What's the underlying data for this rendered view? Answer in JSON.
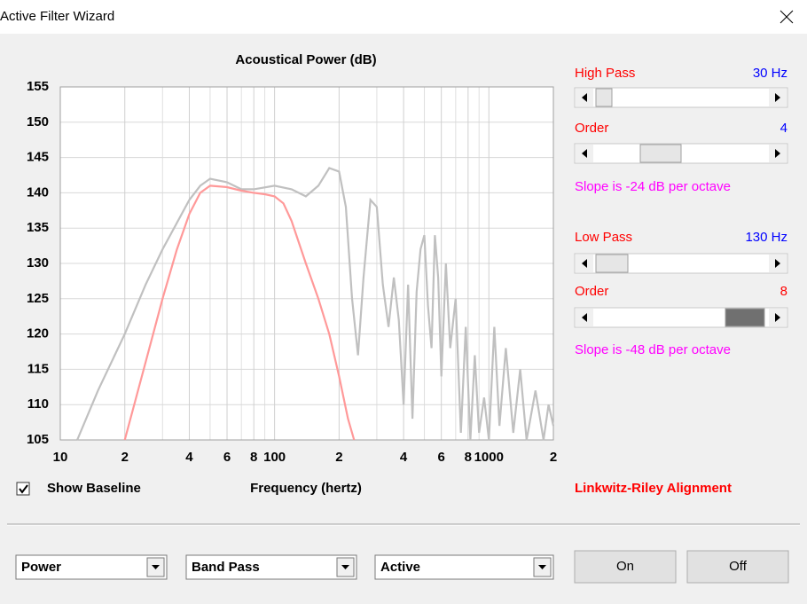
{
  "window": {
    "title": "Active Filter Wizard"
  },
  "chart_data": {
    "type": "line",
    "title": "Acoustical Power (dB)",
    "x_label": "Frequency (hertz)",
    "log_x": true,
    "grid": true,
    "xlim": [
      10,
      2000
    ],
    "ylim": [
      105,
      155
    ],
    "yticks": [
      105,
      110,
      115,
      120,
      125,
      130,
      135,
      140,
      145,
      150,
      155
    ],
    "xticks": [
      {
        "value": 10,
        "label": "10"
      },
      {
        "value": 20,
        "label": "2"
      },
      {
        "value": 40,
        "label": "4"
      },
      {
        "value": 60,
        "label": "6"
      },
      {
        "value": 80,
        "label": "8"
      },
      {
        "value": 100,
        "label": "100"
      },
      {
        "value": 200,
        "label": "2"
      },
      {
        "value": 400,
        "label": "4"
      },
      {
        "value": 600,
        "label": "6"
      },
      {
        "value": 800,
        "label": "8"
      },
      {
        "value": 1000,
        "label": "1000"
      },
      {
        "value": 2000,
        "label": "2"
      }
    ],
    "minor_xticks": [
      30,
      50,
      70,
      90,
      300,
      500,
      700,
      900
    ],
    "series": [
      {
        "color": "#c0c0c0",
        "x": [
          12,
          15,
          20,
          25,
          30,
          40,
          45,
          50,
          60,
          70,
          80,
          100,
          120,
          140,
          160,
          180,
          200,
          215,
          230,
          245,
          260,
          280,
          300,
          320,
          340,
          360,
          380,
          400,
          420,
          440,
          460,
          480,
          500,
          520,
          540,
          560,
          580,
          600,
          630,
          660,
          700,
          740,
          780,
          820,
          860,
          900,
          950,
          1000,
          1060,
          1120,
          1200,
          1300,
          1400,
          1500,
          1650,
          1800,
          1900,
          2000
        ],
        "values": [
          105,
          112,
          120,
          127,
          132,
          139,
          141,
          142,
          141.5,
          140.5,
          140.5,
          141,
          140.5,
          139.5,
          141,
          143.5,
          143,
          138,
          125,
          117,
          128,
          139,
          138,
          127,
          121,
          128,
          122,
          110,
          127,
          108,
          126,
          132,
          134,
          124,
          118,
          134,
          128,
          114,
          130,
          118,
          125,
          106,
          121,
          105,
          117,
          106,
          111,
          105,
          121,
          107,
          118,
          106,
          115,
          105,
          112,
          105,
          110,
          107
        ]
      },
      {
        "color": "#ff9999",
        "x": [
          20,
          25,
          30,
          35,
          40,
          45,
          50,
          60,
          70,
          80,
          90,
          100,
          110,
          120,
          140,
          160,
          180,
          200,
          220,
          235
        ],
        "values": [
          105,
          116,
          125,
          132,
          137,
          140,
          141,
          140.8,
          140.3,
          140,
          139.8,
          139.5,
          138.5,
          136,
          130,
          125,
          120,
          114,
          108,
          105
        ]
      }
    ]
  },
  "filters": {
    "high_pass": {
      "label": "High Pass",
      "value": "30 Hz",
      "order_label": "Order",
      "order": "4",
      "slope": "Slope is -24 dB per octave"
    },
    "low_pass": {
      "label": "Low Pass",
      "value": "130 Hz",
      "order_label": "Order",
      "order": "8",
      "slope": "Slope is -48 dB per octave"
    },
    "alignment": "Linkwitz-Riley Alignment"
  },
  "controls": {
    "show_baseline": "Show Baseline",
    "dropdowns": [
      "Power",
      "Band Pass",
      "Active"
    ],
    "buttons": [
      "On",
      "Off"
    ]
  }
}
